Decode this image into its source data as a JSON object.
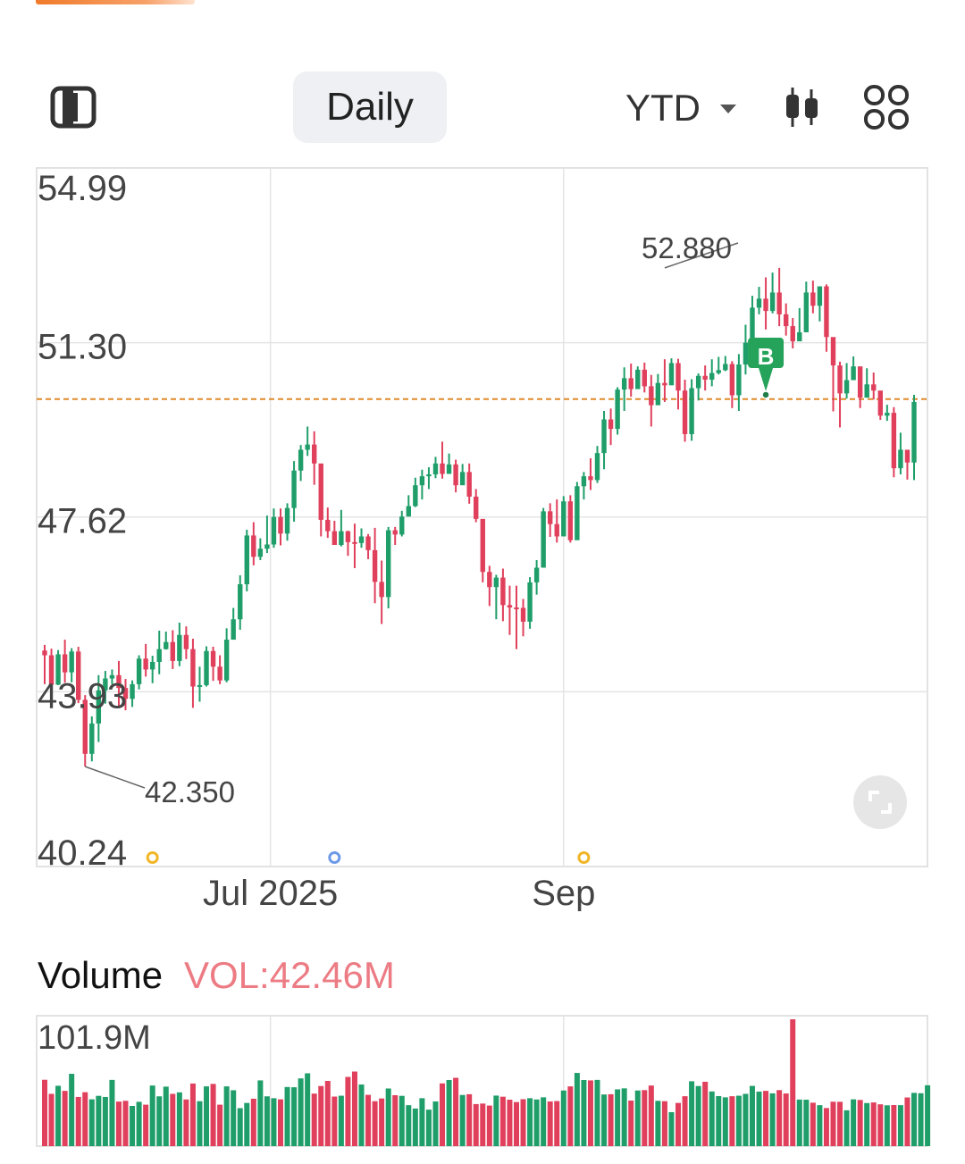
{
  "toolbar": {
    "layout_icon": "split-panel-icon",
    "period_label": "Daily",
    "range_label": "YTD",
    "candle_icon": "candlestick-icon",
    "grid_icon": "grid-icon"
  },
  "chart_data": {
    "type": "candlestick",
    "y_ticks": [
      "54.99",
      "51.30",
      "47.62",
      "43.93",
      "40.24"
    ],
    "ylim": [
      40.24,
      54.99
    ],
    "x_labels": [
      {
        "label": "Jul 2025",
        "index": 33.5
      },
      {
        "label": "Sep",
        "index": 77
      }
    ],
    "annotations": {
      "high": {
        "label": "52.880",
        "value": 52.88,
        "index": 92
      },
      "low": {
        "label": "42.350",
        "value": 42.35,
        "index": 6
      }
    },
    "reference_line": {
      "value": 50.11,
      "color": "#e08a2a"
    },
    "buy_marker": {
      "label": "B",
      "index": 107,
      "value": 50.2,
      "color": "#25a35a"
    },
    "event_dots": [
      {
        "index": 16,
        "color": "#f1b626"
      },
      {
        "index": 43,
        "color": "#6c9ae8"
      },
      {
        "index": 80,
        "color": "#f1b626"
      }
    ],
    "colors": {
      "up": "#1f9e6a",
      "down": "#e0405c"
    },
    "ohlc": [
      [
        44.8,
        44.7,
        44.92,
        44.09
      ],
      [
        44.7,
        44.08,
        44.84,
        43.86
      ],
      [
        44.08,
        44.72,
        44.81,
        44.07
      ],
      [
        44.72,
        44.34,
        45.03,
        44.12
      ],
      [
        44.34,
        44.78,
        44.85,
        44.13
      ],
      [
        44.78,
        43.76,
        44.88,
        43.69
      ],
      [
        43.76,
        42.62,
        43.86,
        42.35
      ],
      [
        42.62,
        43.26,
        43.41,
        42.46
      ],
      [
        43.26,
        43.96,
        44.28,
        42.87
      ],
      [
        43.96,
        44.21,
        44.37,
        43.68
      ],
      [
        44.21,
        44.28,
        44.4,
        44.09
      ],
      [
        44.28,
        44.01,
        44.58,
        43.61
      ],
      [
        44.01,
        43.78,
        44.2,
        43.54
      ],
      [
        43.78,
        44.09,
        44.17,
        43.61
      ],
      [
        44.09,
        44.63,
        44.7,
        43.98
      ],
      [
        44.63,
        44.4,
        44.94,
        44.25
      ],
      [
        44.4,
        44.56,
        44.69,
        44.11
      ],
      [
        44.56,
        44.83,
        45.22,
        44.3
      ],
      [
        44.83,
        44.98,
        45.2,
        44.82
      ],
      [
        44.98,
        44.58,
        45.23,
        44.41
      ],
      [
        44.58,
        45.13,
        45.39,
        44.47
      ],
      [
        45.13,
        44.83,
        45.31,
        44.62
      ],
      [
        44.83,
        44.04,
        45.05,
        43.59
      ],
      [
        44.04,
        44.07,
        44.46,
        43.72
      ],
      [
        44.07,
        44.79,
        44.89,
        44.04
      ],
      [
        44.79,
        44.46,
        44.88,
        44.16
      ],
      [
        44.46,
        44.17,
        44.7,
        44.09
      ],
      [
        44.17,
        45.03,
        45.27,
        44.13
      ],
      [
        45.03,
        45.46,
        45.7,
        45.24
      ],
      [
        45.46,
        46.2,
        46.39,
        45.24
      ],
      [
        46.2,
        47.23,
        47.35,
        46.05
      ],
      [
        47.23,
        46.78,
        47.51,
        46.6
      ],
      [
        46.78,
        46.95,
        47.17,
        46.71
      ],
      [
        46.95,
        47.04,
        47.65,
        46.86
      ],
      [
        47.04,
        47.62,
        47.8,
        46.97
      ],
      [
        47.62,
        47.27,
        47.8,
        47.02
      ],
      [
        47.27,
        47.81,
        47.91,
        47.12
      ],
      [
        47.81,
        48.6,
        48.8,
        47.52
      ],
      [
        48.6,
        49.04,
        49.14,
        48.38
      ],
      [
        49.04,
        49.15,
        49.53,
        48.91
      ],
      [
        49.15,
        48.75,
        49.43,
        48.3
      ],
      [
        48.75,
        47.56,
        47.99,
        47.21
      ],
      [
        47.56,
        47.32,
        47.82,
        47.18
      ],
      [
        47.32,
        47.03,
        47.54,
        47.11
      ],
      [
        47.03,
        47.32,
        47.77,
        47.0
      ],
      [
        47.32,
        47.09,
        47.33,
        46.8
      ],
      [
        47.09,
        47.07,
        47.48,
        46.54
      ],
      [
        47.07,
        47.21,
        47.38,
        46.97
      ],
      [
        47.21,
        46.92,
        47.26,
        46.73
      ],
      [
        46.92,
        46.25,
        47.39,
        45.8
      ],
      [
        46.25,
        45.93,
        46.7,
        45.36
      ],
      [
        45.93,
        47.34,
        47.41,
        45.69
      ],
      [
        47.34,
        47.25,
        47.41,
        47.03
      ],
      [
        47.25,
        47.63,
        47.75,
        47.21
      ],
      [
        47.63,
        47.85,
        48.08,
        47.63
      ],
      [
        47.85,
        48.29,
        48.45,
        47.83
      ],
      [
        48.29,
        48.48,
        48.62,
        47.99
      ],
      [
        48.48,
        48.52,
        48.67,
        48.21
      ],
      [
        48.52,
        48.75,
        48.89,
        48.44
      ],
      [
        48.75,
        48.53,
        49.21,
        48.43
      ],
      [
        48.53,
        48.73,
        48.96,
        48.7
      ],
      [
        48.73,
        48.29,
        48.83,
        48.14
      ],
      [
        48.29,
        48.57,
        48.74,
        48.3
      ],
      [
        48.57,
        48.05,
        48.75,
        47.9
      ],
      [
        48.05,
        47.58,
        48.21,
        47.51
      ],
      [
        47.58,
        46.46,
        46.76,
        46.24
      ],
      [
        46.46,
        46.14,
        46.59,
        45.74
      ],
      [
        46.14,
        46.34,
        46.4,
        45.46
      ],
      [
        46.34,
        45.76,
        46.53,
        45.42
      ],
      [
        45.76,
        45.71,
        46.17,
        45.13
      ],
      [
        45.71,
        45.7,
        46.17,
        44.83
      ],
      [
        45.7,
        45.41,
        45.89,
        45.1
      ],
      [
        45.41,
        46.24,
        46.35,
        45.26
      ],
      [
        46.24,
        46.55,
        46.71,
        45.98
      ],
      [
        46.55,
        47.74,
        47.81,
        46.56
      ],
      [
        47.74,
        47.47,
        47.91,
        47.2
      ],
      [
        47.47,
        47.21,
        47.99,
        47.08
      ],
      [
        47.21,
        47.95,
        48.06,
        47.61
      ],
      [
        47.95,
        47.13,
        48.08,
        47.08
      ],
      [
        47.13,
        48.27,
        48.36,
        47.27
      ],
      [
        48.27,
        48.48,
        48.57,
        47.99
      ],
      [
        48.48,
        48.4,
        48.86,
        48.19
      ],
      [
        48.4,
        48.97,
        49.12,
        48.34
      ],
      [
        48.97,
        49.68,
        49.86,
        48.63
      ],
      [
        49.68,
        49.48,
        49.91,
        49.14
      ],
      [
        49.48,
        50.31,
        50.36,
        49.36
      ],
      [
        50.31,
        50.55,
        50.78,
        49.86
      ],
      [
        50.55,
        50.32,
        50.86,
        50.16
      ],
      [
        50.32,
        50.73,
        50.8,
        50.48
      ],
      [
        50.73,
        50.38,
        50.88,
        50.25
      ],
      [
        50.38,
        49.98,
        50.62,
        49.53
      ],
      [
        49.98,
        50.45,
        50.64,
        50.13
      ],
      [
        50.45,
        50.4,
        50.95,
        50.05
      ],
      [
        50.4,
        50.87,
        50.97,
        50.6
      ],
      [
        50.87,
        50.29,
        50.96,
        49.89
      ],
      [
        50.29,
        49.37,
        50.52,
        49.21
      ],
      [
        49.37,
        50.34,
        50.53,
        49.23
      ],
      [
        50.34,
        50.6,
        50.65,
        50.08
      ],
      [
        50.6,
        50.52,
        50.82,
        50.29
      ],
      [
        50.52,
        50.66,
        50.95,
        50.38
      ],
      [
        50.66,
        50.72,
        51.0,
        50.63
      ],
      [
        50.72,
        50.85,
        51.02,
        50.7
      ],
      [
        50.85,
        50.19,
        50.91,
        49.92
      ],
      [
        50.19,
        50.84,
        51.06,
        49.86
      ],
      [
        50.84,
        51.3,
        51.68,
        50.63
      ],
      [
        51.3,
        52.04,
        52.29,
        51.17
      ],
      [
        52.04,
        52.23,
        52.48,
        51.9
      ],
      [
        52.23,
        51.97,
        52.68,
        51.58
      ],
      [
        51.97,
        52.36,
        52.78,
        51.92
      ],
      [
        52.36,
        51.9,
        52.88,
        51.65
      ],
      [
        51.9,
        51.65,
        52.13,
        51.45
      ],
      [
        51.65,
        51.33,
        51.82,
        51.18
      ],
      [
        51.33,
        51.52,
        52.03,
        51.35
      ],
      [
        51.52,
        52.36,
        52.59,
        52.05
      ],
      [
        52.36,
        52.08,
        52.61,
        51.92
      ],
      [
        52.08,
        52.49,
        52.49,
        51.75
      ],
      [
        52.49,
        51.42,
        52.53,
        51.11
      ],
      [
        51.42,
        50.82,
        51.14,
        49.85
      ],
      [
        50.82,
        50.23,
        50.9,
        49.51
      ],
      [
        50.23,
        50.51,
        50.87,
        50.12
      ],
      [
        50.51,
        50.8,
        51.01,
        50.68
      ],
      [
        50.8,
        50.14,
        50.59,
        49.92
      ],
      [
        50.14,
        50.42,
        50.76,
        50.21
      ],
      [
        50.42,
        50.29,
        50.67,
        50.1
      ],
      [
        50.29,
        49.76,
        50.18,
        49.67
      ],
      [
        49.76,
        49.82,
        49.99,
        49.65
      ],
      [
        49.82,
        48.65,
        49.94,
        48.46
      ],
      [
        48.65,
        49.04,
        49.4,
        48.52
      ],
      [
        49.04,
        48.77,
        49.04,
        48.41
      ],
      [
        48.77,
        50.05,
        50.2,
        48.4
      ]
    ],
    "volume": {
      "max_label": "101.9M",
      "max": 101.9,
      "current_label": "VOL:42.46M",
      "title": "Volume",
      "values": [
        53.3,
        42.0,
        48.5,
        44.4,
        58.1,
        39.5,
        43.3,
        37.6,
        40.4,
        39.5,
        53.2,
        35.8,
        36.4,
        32.3,
        35.6,
        33.3,
        48.7,
        40.0,
        47.8,
        42.0,
        43.2,
        37.5,
        50.3,
        36.1,
        48.0,
        50.0,
        33.3,
        48.0,
        44.9,
        30.5,
        34.7,
        38.1,
        52.8,
        40.0,
        38.5,
        37.6,
        47.5,
        47.3,
        54.4,
        58.5,
        42.2,
        48.3,
        52.4,
        39.8,
        40.5,
        55.6,
        59.9,
        49.5,
        41.2,
        36.1,
        38.3,
        46.3,
        40.9,
        40.4,
        32.9,
        30.2,
        38.5,
        29.3,
        35.9,
        50.4,
        53.1,
        54.9,
        41.1,
        41.7,
        33.8,
        34.2,
        32.6,
        40.6,
        39.7,
        37.3,
        35.4,
        37.7,
        38.5,
        37.5,
        39.2,
        35.9,
        36.2,
        44.7,
        48.0,
        58.8,
        53.1,
        52.8,
        53.2,
        41.5,
        41.7,
        45.6,
        46.4,
        36.6,
        44.7,
        45.0,
        48.7,
        36.4,
        36.1,
        27.3,
        34.7,
        40.1,
        52.1,
        48.3,
        51.7,
        43.9,
        40.2,
        39.2,
        40.1,
        40.5,
        42.0,
        48.4,
        43.8,
        44.4,
        42.4,
        45.0,
        42.3,
        101.9,
        37.4,
        37.3,
        34.9,
        32.9,
        30.6,
        35.7,
        35.6,
        28.8,
        37.6,
        37.1,
        34.6,
        35.1,
        33.6,
        32.8,
        33.0,
        32.9,
        39.1,
        42.8,
        42.5,
        48.9
      ]
    }
  }
}
